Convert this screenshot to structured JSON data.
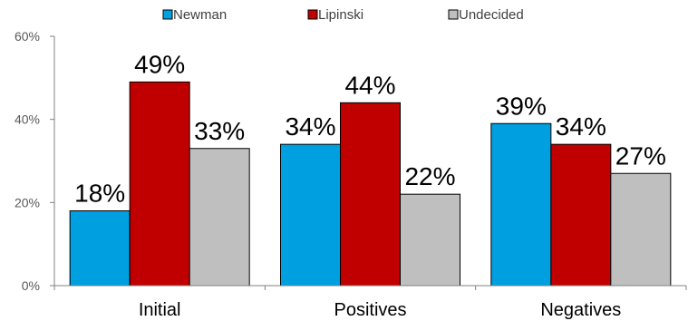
{
  "chart_data": {
    "type": "bar",
    "categories": [
      "Initial",
      "Positives",
      "Negatives"
    ],
    "series": [
      {
        "name": "Newman",
        "values": [
          18,
          34,
          39
        ],
        "color": "#00A0E0"
      },
      {
        "name": "Lipinski",
        "values": [
          49,
          44,
          34
        ],
        "color": "#C00000"
      },
      {
        "name": "Undecided",
        "values": [
          33,
          22,
          27
        ],
        "color": "#BFBFBF"
      }
    ],
    "value_suffix": "%",
    "ylim": [
      0,
      60
    ],
    "yticks": [
      "0%",
      "20%",
      "40%",
      "60%"
    ],
    "legend_position": "top",
    "grid": false
  }
}
